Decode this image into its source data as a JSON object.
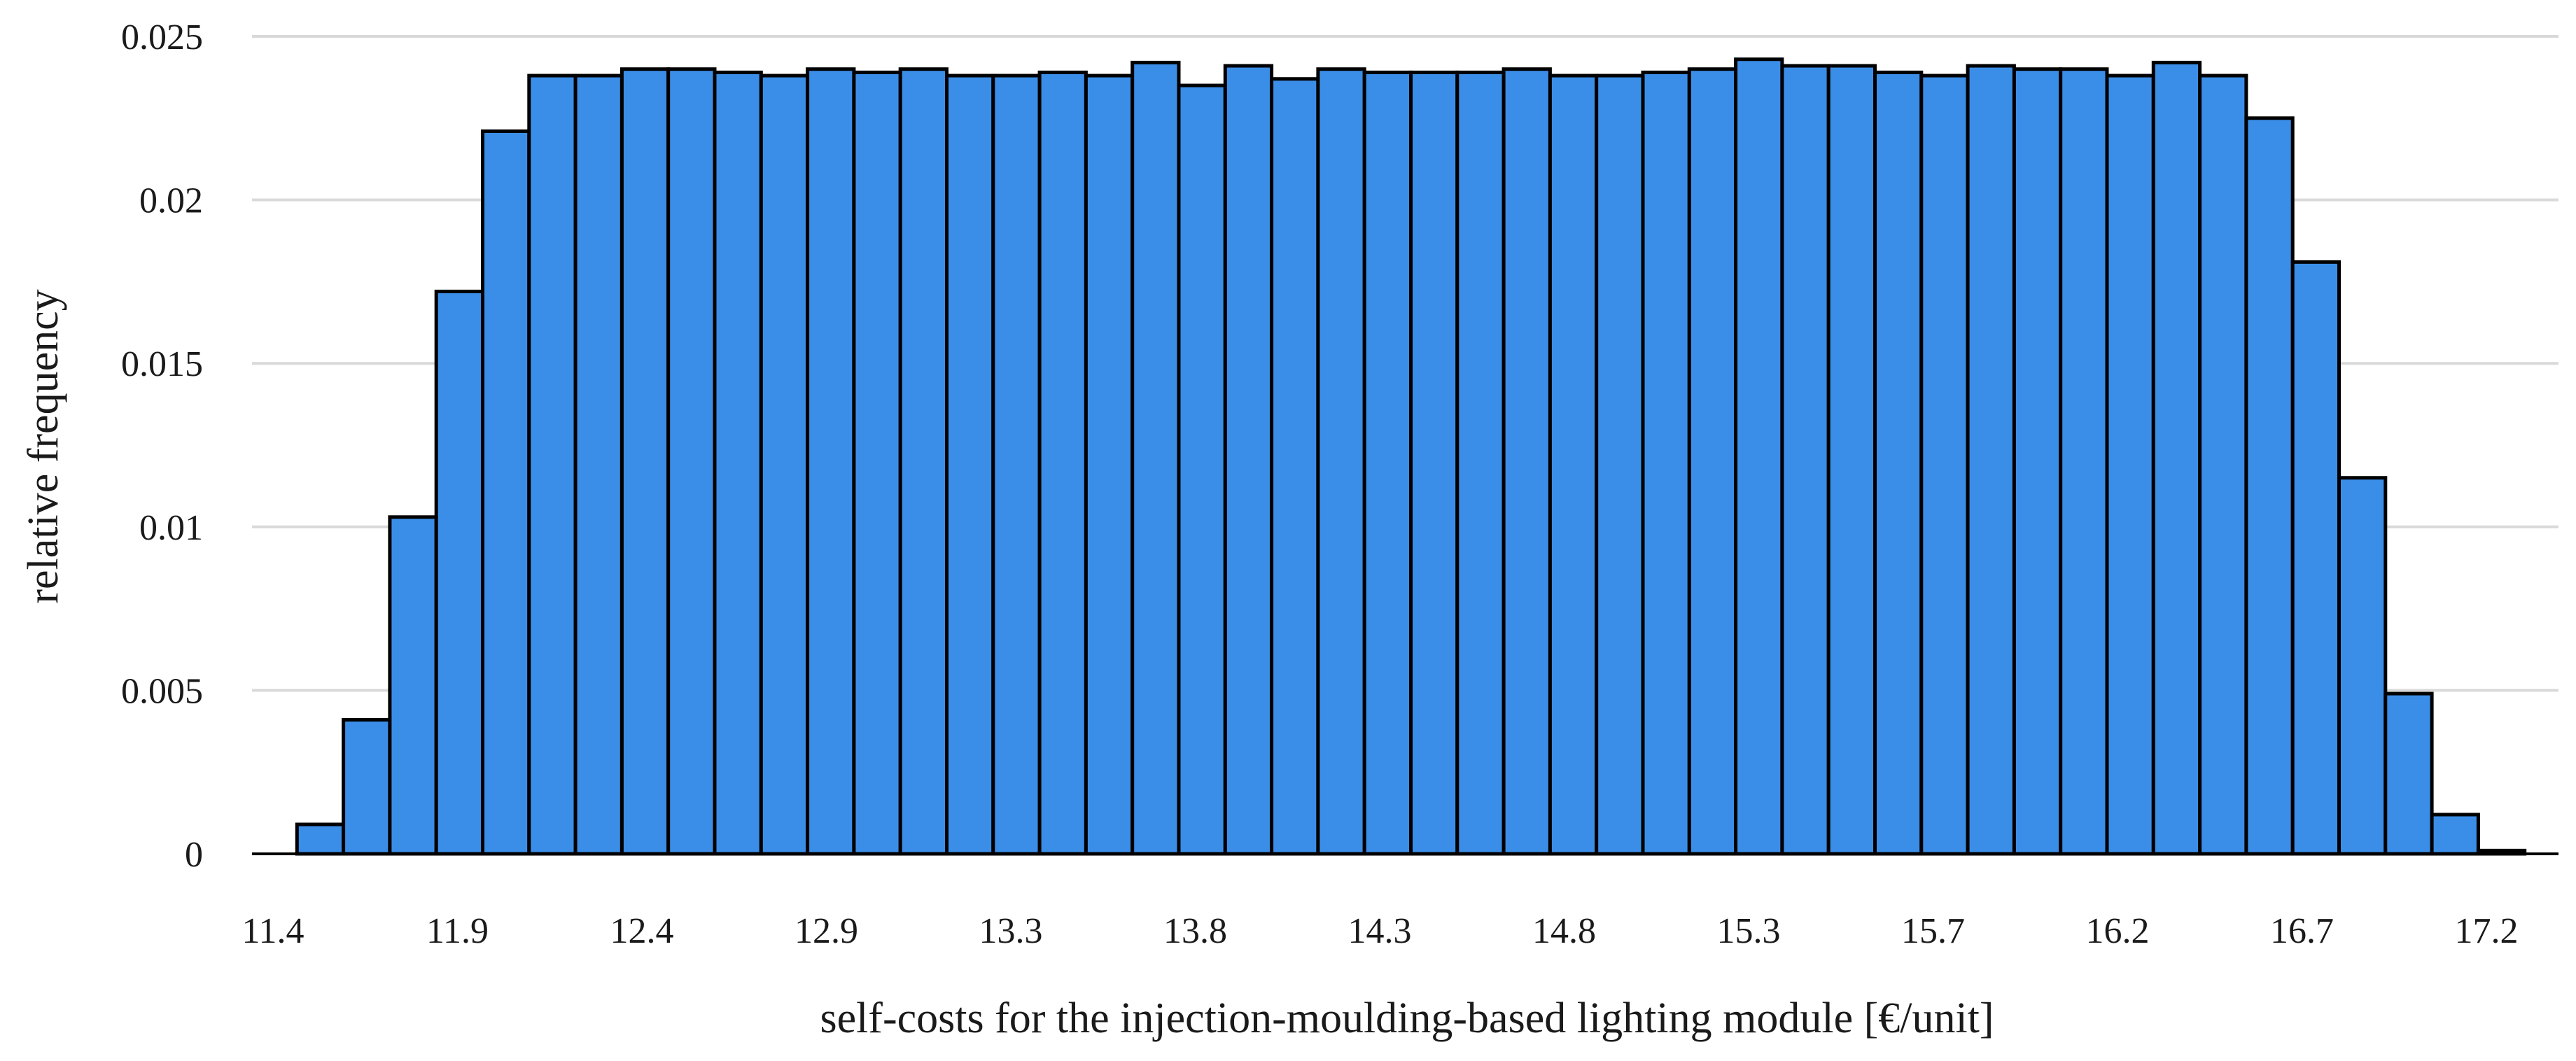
{
  "chart_data": {
    "type": "bar",
    "title": "",
    "xlabel": "self-costs for the injection-moulding-based lighting module [€/unit]",
    "ylabel": "relative frequency",
    "ylim": [
      0,
      0.025
    ],
    "yticks": [
      "0",
      "0.005",
      "0.01",
      "0.015",
      "0.02",
      "0.025"
    ],
    "ytick_values": [
      0,
      0.005,
      0.01,
      0.015,
      0.02,
      0.025
    ],
    "xtick_labels": [
      "11.4",
      "11.9",
      "12.4",
      "12.9",
      "13.3",
      "13.8",
      "14.3",
      "14.8",
      "15.3",
      "15.7",
      "16.2",
      "16.7",
      "17.2"
    ],
    "grid": true,
    "legend": "none",
    "bar_color": "#3b8ee8",
    "values": [
      0.0,
      0.0009,
      0.0041,
      0.0103,
      0.0172,
      0.0221,
      0.0238,
      0.0238,
      0.024,
      0.024,
      0.0239,
      0.0238,
      0.024,
      0.0239,
      0.024,
      0.0238,
      0.0238,
      0.0239,
      0.0238,
      0.0242,
      0.0235,
      0.0241,
      0.0237,
      0.024,
      0.0239,
      0.0239,
      0.0239,
      0.024,
      0.0238,
      0.0238,
      0.0239,
      0.024,
      0.0243,
      0.0241,
      0.0241,
      0.0239,
      0.0238,
      0.0241,
      0.024,
      0.024,
      0.0238,
      0.0242,
      0.0238,
      0.0225,
      0.0181,
      0.0115,
      0.0049,
      0.0012,
      0.0001
    ]
  }
}
